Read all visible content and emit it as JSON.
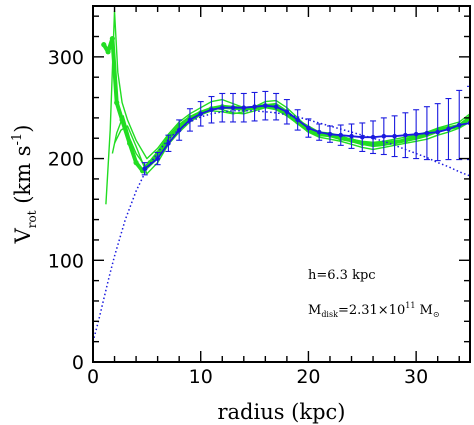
{
  "chart_data": {
    "type": "line",
    "xlabel": "radius (kpc)",
    "ylabel_main": "V",
    "ylabel_sub": "rot",
    "ylabel_units": " (km s",
    "ylabel_exp": "-1",
    "ylabel_close": ")",
    "xlim": [
      0,
      35
    ],
    "ylim": [
      0,
      350
    ],
    "x_ticks": [
      0,
      10,
      20,
      30
    ],
    "y_ticks": [
      0,
      100,
      200,
      300
    ],
    "annotations": {
      "h_text": "h=6.3 kpc",
      "m_main": "M",
      "m_sub": "disk",
      "m_eq": "=2.31×10",
      "m_exp": "11",
      "m_unit": " M",
      "m_unit_sub": "⊙"
    },
    "colors": {
      "observed": "#22dd22",
      "binned": "#1a1adf",
      "disk_model": "#1a1adf",
      "axes": "#000000"
    },
    "series": [
      {
        "role": "observed",
        "style": "thick",
        "points": [
          [
            1,
            312
          ],
          [
            1.4,
            305
          ],
          [
            1.8,
            318
          ],
          [
            2.2,
            255
          ],
          [
            2.7,
            238
          ],
          [
            3.4,
            215
          ],
          [
            4.0,
            196
          ],
          [
            4.6,
            188
          ],
          [
            5.3,
            196
          ],
          [
            6.0,
            205
          ],
          [
            7,
            220
          ],
          [
            8,
            232
          ],
          [
            9,
            240
          ],
          [
            10,
            245
          ],
          [
            11,
            249
          ],
          [
            12,
            251
          ],
          [
            13,
            250
          ],
          [
            14,
            249
          ],
          [
            15,
            250
          ],
          [
            16,
            252
          ],
          [
            17,
            251
          ],
          [
            18,
            244
          ],
          [
            19,
            236
          ],
          [
            20,
            228
          ],
          [
            21,
            224
          ],
          [
            22,
            223
          ],
          [
            23,
            220
          ],
          [
            24,
            218
          ],
          [
            25,
            215
          ],
          [
            26,
            214
          ],
          [
            27,
            215
          ],
          [
            28,
            216
          ],
          [
            29,
            218
          ],
          [
            30,
            221
          ],
          [
            31,
            224
          ],
          [
            32,
            228
          ],
          [
            33,
            230
          ],
          [
            34,
            232
          ],
          [
            35,
            240
          ]
        ]
      },
      {
        "role": "observed",
        "style": "thin",
        "points": [
          [
            1.2,
            155
          ],
          [
            1.6,
            228
          ],
          [
            2.0,
            345
          ],
          [
            2.3,
            285
          ],
          [
            2.7,
            255
          ],
          [
            3.2,
            238
          ],
          [
            4,
            218
          ],
          [
            5,
            200
          ],
          [
            6,
            210
          ],
          [
            7,
            224
          ],
          [
            8,
            236
          ],
          [
            9,
            244
          ],
          [
            10,
            250
          ],
          [
            11,
            256
          ],
          [
            12,
            258
          ],
          [
            13,
            254
          ],
          [
            14,
            250
          ],
          [
            15,
            249
          ],
          [
            16,
            253
          ],
          [
            17,
            254
          ],
          [
            18,
            247
          ],
          [
            19,
            238
          ],
          [
            20,
            232
          ],
          [
            21,
            226
          ],
          [
            22,
            222
          ],
          [
            23,
            219
          ],
          [
            24,
            217
          ],
          [
            25,
            214
          ],
          [
            26,
            212
          ],
          [
            27,
            213
          ],
          [
            28,
            215
          ],
          [
            29,
            217
          ],
          [
            30,
            219
          ],
          [
            31,
            222
          ],
          [
            32,
            226
          ],
          [
            33,
            229
          ],
          [
            34,
            233
          ],
          [
            35,
            242
          ]
        ]
      },
      {
        "role": "observed",
        "style": "thin",
        "points": [
          [
            1.8,
            205
          ],
          [
            2.2,
            225
          ],
          [
            2.8,
            242
          ],
          [
            3.4,
            220
          ],
          [
            4,
            205
          ],
          [
            5,
            190
          ],
          [
            6,
            200
          ],
          [
            7,
            218
          ],
          [
            8,
            232
          ],
          [
            9,
            240
          ],
          [
            10,
            246
          ],
          [
            11,
            250
          ],
          [
            12,
            248
          ],
          [
            13,
            245
          ],
          [
            14,
            244
          ],
          [
            15,
            247
          ],
          [
            16,
            250
          ],
          [
            17,
            248
          ],
          [
            18,
            242
          ],
          [
            19,
            234
          ],
          [
            20,
            226
          ],
          [
            21,
            221
          ],
          [
            22,
            219
          ],
          [
            23,
            217
          ],
          [
            24,
            214
          ],
          [
            25,
            211
          ],
          [
            26,
            209
          ],
          [
            27,
            211
          ],
          [
            28,
            213
          ],
          [
            29,
            215
          ],
          [
            30,
            217
          ],
          [
            31,
            219
          ],
          [
            32,
            223
          ],
          [
            33,
            226
          ],
          [
            34,
            230
          ],
          [
            35,
            236
          ]
        ]
      },
      {
        "role": "observed",
        "style": "thin",
        "points": [
          [
            2.0,
            215
          ],
          [
            2.6,
            228
          ],
          [
            3.2,
            232
          ],
          [
            4,
            212
          ],
          [
            5,
            185
          ],
          [
            6,
            196
          ],
          [
            7,
            214
          ],
          [
            8,
            226
          ],
          [
            9,
            236
          ],
          [
            10,
            243
          ],
          [
            11,
            247
          ],
          [
            12,
            246
          ],
          [
            13,
            244
          ],
          [
            14,
            246
          ],
          [
            15,
            251
          ],
          [
            16,
            256
          ],
          [
            17,
            257
          ],
          [
            18,
            250
          ],
          [
            19,
            240
          ],
          [
            20,
            230
          ],
          [
            21,
            226
          ],
          [
            22,
            225
          ],
          [
            23,
            222
          ],
          [
            24,
            219
          ],
          [
            25,
            217
          ],
          [
            26,
            216
          ],
          [
            27,
            217
          ],
          [
            28,
            219
          ],
          [
            29,
            221
          ],
          [
            30,
            223
          ],
          [
            31,
            226
          ],
          [
            32,
            230
          ],
          [
            33,
            233
          ],
          [
            34,
            236
          ],
          [
            35,
            244
          ]
        ]
      },
      {
        "role": "binned",
        "points": [
          [
            4.8,
            190
          ],
          [
            6,
            200
          ],
          [
            7,
            215
          ],
          [
            8,
            228
          ],
          [
            9,
            238
          ],
          [
            10,
            244
          ],
          [
            11,
            248
          ],
          [
            12,
            250
          ],
          [
            13,
            250
          ],
          [
            14,
            250
          ],
          [
            15,
            251
          ],
          [
            16,
            252
          ],
          [
            17,
            251
          ],
          [
            18,
            246
          ],
          [
            19,
            238
          ],
          [
            20,
            230
          ],
          [
            21,
            226
          ],
          [
            22,
            224
          ],
          [
            23,
            223
          ],
          [
            24,
            222
          ],
          [
            25,
            221
          ],
          [
            26,
            221
          ],
          [
            27,
            222
          ],
          [
            28,
            222
          ],
          [
            29,
            223
          ],
          [
            30,
            224
          ],
          [
            31,
            225
          ],
          [
            32,
            226
          ],
          [
            33,
            229
          ],
          [
            34,
            233
          ],
          [
            35,
            235
          ]
        ],
        "errors": [
          [
            4.8,
            6
          ],
          [
            6,
            6
          ],
          [
            7,
            8
          ],
          [
            8,
            10
          ],
          [
            9,
            11
          ],
          [
            10,
            12
          ],
          [
            11,
            13
          ],
          [
            12,
            14
          ],
          [
            13,
            14
          ],
          [
            14,
            14
          ],
          [
            15,
            14
          ],
          [
            16,
            14
          ],
          [
            17,
            13
          ],
          [
            18,
            12
          ],
          [
            19,
            10
          ],
          [
            20,
            9
          ],
          [
            21,
            8
          ],
          [
            22,
            8
          ],
          [
            23,
            10
          ],
          [
            24,
            12
          ],
          [
            25,
            14
          ],
          [
            26,
            16
          ],
          [
            27,
            18
          ],
          [
            28,
            20
          ],
          [
            29,
            22
          ],
          [
            30,
            24
          ],
          [
            31,
            26
          ],
          [
            32,
            28
          ],
          [
            33,
            30
          ],
          [
            34,
            34
          ],
          [
            35,
            36
          ]
        ]
      },
      {
        "role": "disk_model",
        "style": "dotted",
        "points": [
          [
            0,
            20
          ],
          [
            0.5,
            40
          ],
          [
            1,
            62
          ],
          [
            1.5,
            84
          ],
          [
            2,
            104
          ],
          [
            3,
            140
          ],
          [
            4,
            168
          ],
          [
            5,
            190
          ],
          [
            6,
            206
          ],
          [
            7,
            219
          ],
          [
            8,
            229
          ],
          [
            9,
            236
          ],
          [
            10,
            241
          ],
          [
            11,
            244
          ],
          [
            12,
            246
          ],
          [
            13,
            247
          ],
          [
            14,
            247
          ],
          [
            15,
            247
          ],
          [
            16,
            246
          ],
          [
            17,
            245
          ],
          [
            18,
            243
          ],
          [
            19,
            241
          ],
          [
            20,
            238
          ],
          [
            21,
            235
          ],
          [
            22,
            232
          ],
          [
            23,
            229
          ],
          [
            24,
            226
          ],
          [
            25,
            223
          ],
          [
            26,
            220
          ],
          [
            27,
            217
          ],
          [
            28,
            213
          ],
          [
            29,
            209
          ],
          [
            30,
            205
          ],
          [
            31,
            201
          ],
          [
            32,
            196
          ],
          [
            33,
            192
          ],
          [
            34,
            187
          ],
          [
            35,
            183
          ]
        ]
      }
    ]
  }
}
